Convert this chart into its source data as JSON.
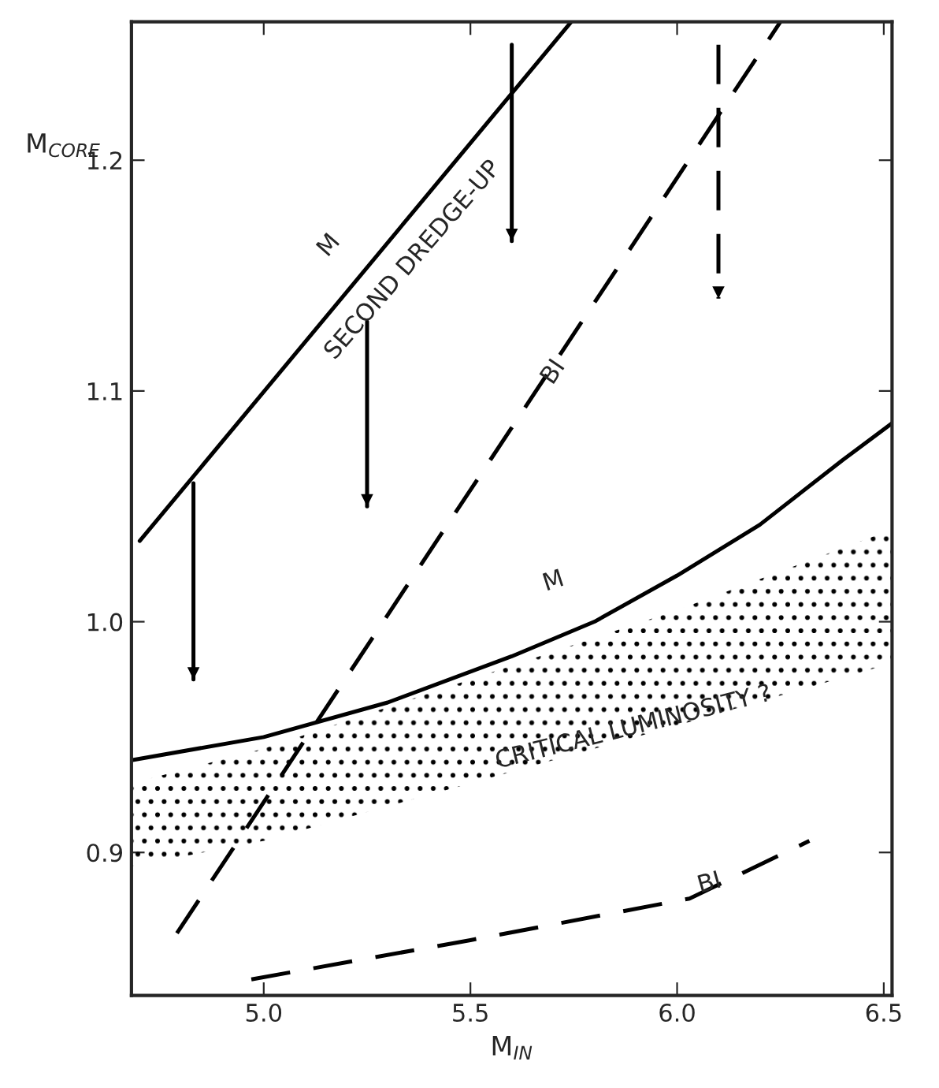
{
  "chart_data": {
    "type": "line",
    "xlabel": "M$_{IN}$",
    "ylabel": "M$_{CORE}$",
    "xlim": [
      4.68,
      6.52
    ],
    "ylim": [
      0.838,
      1.26
    ],
    "xticks": [
      {
        "value": 5.0,
        "label": "5.0"
      },
      5.5,
      {
        "value": 6.0,
        "label": "6.0"
      },
      6.5
    ],
    "yticks": [
      0.9,
      {
        "value": 1.0,
        "label": "1.0"
      },
      1.1,
      1.2
    ],
    "grid": false,
    "marker": "none",
    "series": [
      {
        "color": "#000000",
        "line_style": "solid",
        "x": [
          4.7,
          5.744
        ],
        "values": [
          1.035,
          1.26
        ]
      },
      {
        "color": "#000000",
        "line_style": "dashed",
        "x": [
          4.79,
          6.25
        ],
        "values": [
          0.865,
          1.26
        ]
      },
      {
        "color": "#000000",
        "line_style": "solid",
        "x": [
          4.68,
          5.0,
          5.3,
          5.6,
          5.8,
          6.0,
          6.2,
          6.4,
          6.52
        ],
        "values": [
          0.94,
          0.95,
          0.965,
          0.985,
          1.0,
          1.02,
          1.042,
          1.07,
          1.086
        ]
      },
      {
        "color": "#000000",
        "line_style": "dashed",
        "x": [
          4.97,
          5.5,
          6.03,
          6.32
        ],
        "values": [
          0.845,
          0.862,
          0.88,
          0.905
        ]
      },
      {
        "type": "area",
        "color": "#000000",
        "x": [
          4.68,
          5.0,
          5.5,
          6.0,
          6.52
        ],
        "values": [
          null,
          null,
          null,
          null,
          null
        ],
        "lower": [
          0.894,
          0.905,
          0.93,
          0.955,
          0.982
        ],
        "upper": [
          0.93,
          0.945,
          0.975,
          1.005,
          1.04
        ]
      },
      {
        "color": "#000000",
        "line_style": "solid",
        "x": [
          4.83,
          4.83
        ],
        "values": [
          1.06,
          0.975
        ]
      },
      {
        "color": "#000000",
        "line_style": "solid",
        "x": [
          5.25,
          5.25
        ],
        "values": [
          1.13,
          1.05
        ]
      },
      {
        "color": "#000000",
        "line_style": "solid",
        "x": [
          5.6,
          5.6
        ],
        "values": [
          1.25,
          1.165
        ]
      },
      {
        "color": "#000000",
        "line_style": "dashed",
        "x": [
          6.1,
          6.1
        ],
        "values": [
          1.25,
          1.14
        ]
      }
    ],
    "annotations": [
      "M",
      "SECOND DREDGE-UP",
      "BI",
      "M",
      "CRITICAL LUMINOSITY ?",
      "BI"
    ]
  }
}
